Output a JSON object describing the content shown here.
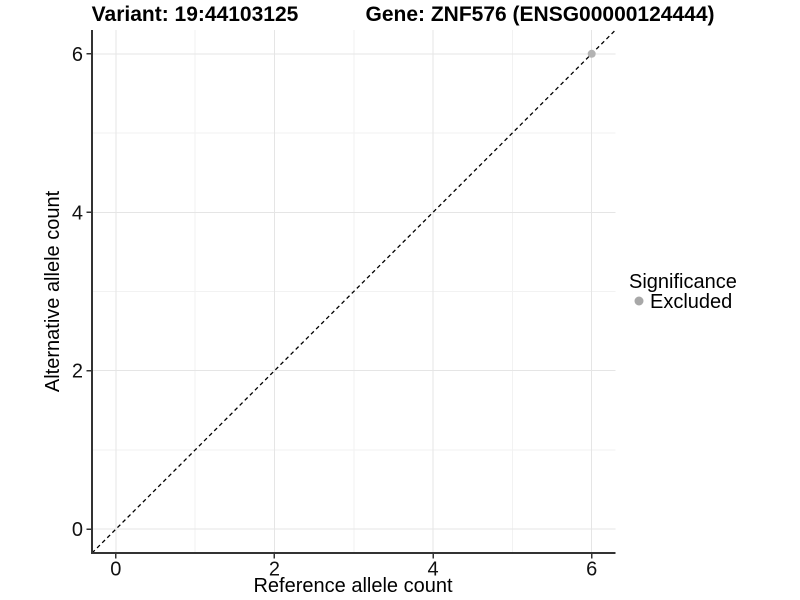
{
  "header": {
    "variant_title": "Variant: 19:44103125",
    "gene_title": "Gene: ZNF576 (ENSG00000124444)"
  },
  "chart_data": {
    "type": "scatter",
    "title": "Variant: 19:44103125 | Gene: ZNF576 (ENSG00000124444)",
    "xlabel": "Reference allele count",
    "ylabel": "Alternative allele count",
    "xlim": [
      -0.3,
      6.3
    ],
    "ylim": [
      -0.3,
      6.3
    ],
    "x_ticks": [
      0,
      2,
      4,
      6
    ],
    "y_ticks": [
      0,
      2,
      4,
      6
    ],
    "x_minor_ticks": [
      1,
      3,
      5
    ],
    "y_minor_ticks": [
      1,
      3,
      5
    ],
    "grid": true,
    "reference_line": {
      "type": "identity",
      "style": "dashed",
      "from": [
        -0.3,
        -0.3
      ],
      "to": [
        6.3,
        6.3
      ],
      "color": "#000000"
    },
    "series": [
      {
        "name": "Excluded",
        "marker": "circle",
        "color": "#b3b3b3",
        "points": [
          [
            6,
            6
          ]
        ]
      }
    ],
    "legend": {
      "title": "Significance",
      "position": "right",
      "entries": [
        {
          "label": "Excluded",
          "color": "#a8a8a8"
        }
      ]
    }
  },
  "colors": {
    "background": "#ffffff",
    "grid_major": "#e5e5e5",
    "grid_minor": "#f2f2f2",
    "axis_line": "#333333",
    "text": "#000000",
    "dashed_line": "#000000"
  }
}
